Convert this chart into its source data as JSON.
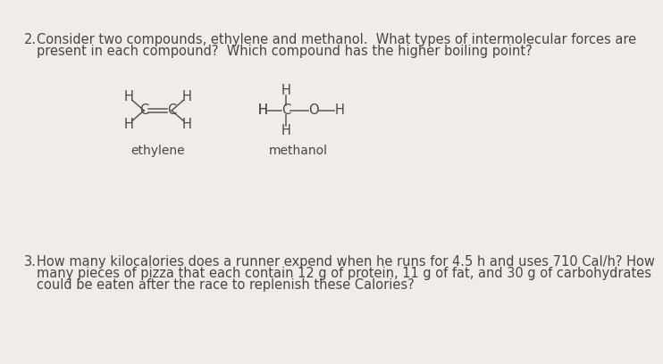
{
  "background_color": "#f0ede8",
  "text_color": "#4a4542",
  "fig_width": 7.0,
  "fig_height": 5.04,
  "q2_number": "2.",
  "q2_line1": "Consider two compounds, ethylene and methanol.  What types of intermolecular forces are",
  "q2_line2": "present in each compound?  Which compound has the higher boiling point?",
  "q3_number": "3.",
  "q3_line1": "How many kilocalories does a runner expend when he runs for 4.5 h and uses 710 Cal/h? How",
  "q3_line2": "many pieces of pizza that each contain 12 g of protein, 11 g of fat, and 30 g of carbohydrates",
  "q3_line3": "could be eaten after the race to replenish these Calories?",
  "ethylene_label": "ethylene",
  "methanol_label": "methanol",
  "bond_color": "#5a5552",
  "fs_main": 10.5,
  "fs_chem": 10.5
}
